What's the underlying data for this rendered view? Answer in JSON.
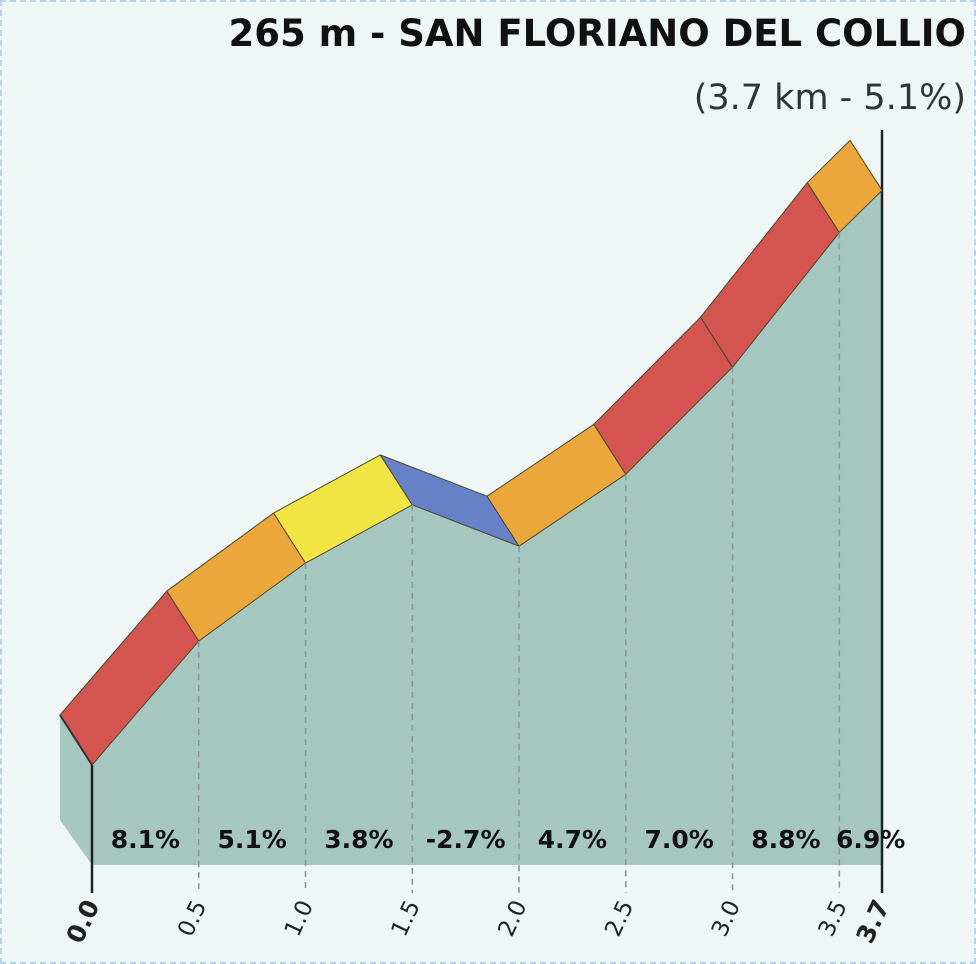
{
  "chart_data": {
    "type": "area",
    "title": "265 m - SAN FLORIANO DEL COLLIO",
    "subtitle": "(3.7 km - 5.1%)",
    "xlabel": "",
    "ylabel": "",
    "x_ticks": [
      "0.0",
      "0.5",
      "1.0",
      "1.5",
      "2.0",
      "2.5",
      "3.0",
      "3.5",
      "3.7"
    ],
    "xlim": [
      0,
      3.7
    ],
    "segments": [
      {
        "start": 0.0,
        "end": 0.5,
        "gradient": 8.1,
        "label": "8.1%",
        "color": "#d45450"
      },
      {
        "start": 0.5,
        "end": 1.0,
        "gradient": 5.1,
        "label": "5.1%",
        "color": "#eba63c"
      },
      {
        "start": 1.0,
        "end": 1.5,
        "gradient": 3.8,
        "label": "3.8%",
        "color": "#f0e545"
      },
      {
        "start": 1.5,
        "end": 2.0,
        "gradient": -2.7,
        "label": "-2.7%",
        "color": "#6681c7"
      },
      {
        "start": 2.0,
        "end": 2.5,
        "gradient": 4.7,
        "label": "4.7%",
        "color": "#eba63c"
      },
      {
        "start": 2.5,
        "end": 3.0,
        "gradient": 7.0,
        "label": "7.0%",
        "color": "#d45450"
      },
      {
        "start": 3.0,
        "end": 3.5,
        "gradient": 8.8,
        "label": "8.8%",
        "color": "#d45450"
      },
      {
        "start": 3.5,
        "end": 3.7,
        "gradient": 6.9,
        "label": "6.9%",
        "color": "#eba63c"
      }
    ],
    "area_color": "#a6c6c0",
    "grid": false,
    "legend": "none"
  }
}
